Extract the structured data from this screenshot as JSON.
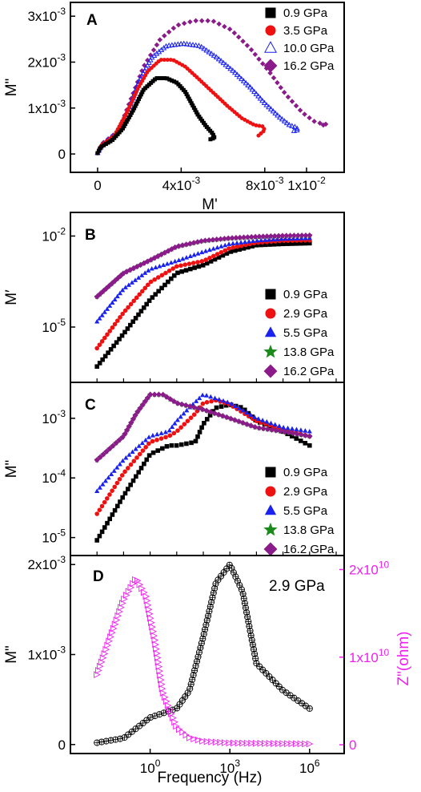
{
  "colors": {
    "black": "#000000",
    "red": "#ee1111",
    "blue": "#1a22ee",
    "green": "#1a8a1a",
    "purple": "#8b1a8b",
    "magenta": "#ee22ee"
  },
  "chart_data": [
    {
      "panel": "A",
      "type": "scatter",
      "xlabel": "M'",
      "ylabel": "M\"",
      "xlim": [
        -0.0013,
        0.0118
      ],
      "ylim": [
        -0.0004,
        0.0033
      ],
      "x_ticks": [
        {
          "v": 0,
          "label": "0"
        },
        {
          "v": 0.004,
          "label": "4x10-3"
        },
        {
          "v": 0.008,
          "label": "8x10-3"
        },
        {
          "v": 0.01,
          "label": "1x10-2"
        }
      ],
      "y_ticks": [
        {
          "v": 0,
          "label": "0"
        },
        {
          "v": 0.001,
          "label": "1x10-3"
        },
        {
          "v": 0.002,
          "label": "2x10-3"
        },
        {
          "v": 0.003,
          "label": "3x10-3"
        }
      ],
      "series": [
        {
          "name": "0.9 GPa",
          "color": "black",
          "marker": "square",
          "n": 75,
          "x": [
            0,
            0.00015,
            0.0007,
            0.0012,
            0.0017,
            0.0022,
            0.0028,
            0.0033,
            0.0038,
            0.0042,
            0.0045,
            0.0048,
            0.0052,
            0.0055,
            0.0056,
            0.0054
          ],
          "y": [
            2e-05,
            0.00015,
            0.0003,
            0.00055,
            0.00095,
            0.0014,
            0.00165,
            0.00165,
            0.00155,
            0.00135,
            0.0011,
            0.00085,
            0.0006,
            0.00045,
            0.00035,
            0.00032
          ]
        },
        {
          "name": "3.5 GPa",
          "color": "red",
          "marker": "circle",
          "n": 80,
          "x": [
            0,
            0.00015,
            0.0008,
            0.0014,
            0.0019,
            0.0024,
            0.003,
            0.0036,
            0.0042,
            0.0048,
            0.0055,
            0.0062,
            0.0069,
            0.0075,
            0.0079,
            0.008,
            0.0077
          ],
          "y": [
            2e-05,
            0.00018,
            0.0004,
            0.0009,
            0.0014,
            0.0018,
            0.00205,
            0.00205,
            0.0019,
            0.00165,
            0.00135,
            0.00105,
            0.00078,
            0.00063,
            0.0006,
            0.00052,
            0.0004
          ]
        },
        {
          "name": "10.0 GPa",
          "color": "blue",
          "marker": "triangle-open",
          "n": 100,
          "x": [
            0,
            0.0002,
            0.0009,
            0.0015,
            0.002,
            0.0026,
            0.0033,
            0.0041,
            0.0049,
            0.0057,
            0.0065,
            0.0073,
            0.008,
            0.0087,
            0.0092,
            0.0095,
            0.0096,
            0.0094
          ],
          "y": [
            2e-05,
            0.0002,
            0.00045,
            0.001,
            0.0016,
            0.0021,
            0.00235,
            0.0024,
            0.00235,
            0.0021,
            0.0018,
            0.00145,
            0.0011,
            0.0008,
            0.00062,
            0.00058,
            0.00052,
            0.0005
          ]
        },
        {
          "name": "16.2 GPa",
          "color": "purple",
          "marker": "diamond",
          "n": 60,
          "x": [
            0,
            0.0002,
            0.001,
            0.0016,
            0.0022,
            0.003,
            0.0038,
            0.0046,
            0.0055,
            0.0064,
            0.0073,
            0.0082,
            0.009,
            0.0098,
            0.0104,
            0.0108,
            0.011,
            0.0108
          ],
          "y": [
            2e-05,
            0.00022,
            0.0005,
            0.0012,
            0.0019,
            0.0025,
            0.0028,
            0.0029,
            0.0029,
            0.0027,
            0.0023,
            0.0018,
            0.0013,
            0.0009,
            0.0007,
            0.00065,
            0.00065,
            0.00063
          ]
        }
      ]
    },
    {
      "panel": "B",
      "type": "scatter",
      "xscale": "log",
      "yscale": "log",
      "xlabel": "",
      "ylabel": "M′",
      "xlim": [
        0.001,
        20000000
      ],
      "ylim": [
        1.5e-07,
        0.06
      ],
      "y_ticks": [
        {
          "v": 1e-05,
          "label": "10-5"
        },
        {
          "v": 0.01,
          "label": "10-2"
        }
      ],
      "series": [
        {
          "name": "0.9 GPa",
          "color": "black",
          "marker": "square",
          "n": 60,
          "x": [
            0.01,
            0.1,
            1,
            10,
            100,
            1000,
            10000,
            100000,
            1000000
          ],
          "y": [
            5e-07,
            6e-06,
            8e-05,
            0.0006,
            0.0011,
            0.003,
            0.005,
            0.0055,
            0.0058
          ]
        },
        {
          "name": "2.9 GPa",
          "color": "red",
          "marker": "circle",
          "n": 60,
          "x": [
            0.01,
            0.1,
            1,
            10,
            100,
            1000,
            10000,
            100000,
            1000000
          ],
          "y": [
            2e-06,
            3e-05,
            0.0003,
            0.001,
            0.0015,
            0.004,
            0.006,
            0.007,
            0.0072
          ]
        },
        {
          "name": "5.5 GPa",
          "color": "blue",
          "marker": "triangle",
          "n": 60,
          "x": [
            0.01,
            0.1,
            1,
            10,
            100,
            1000,
            10000,
            100000,
            1000000
          ],
          "y": [
            1.5e-05,
            0.00018,
            0.0008,
            0.0015,
            0.003,
            0.0055,
            0.007,
            0.008,
            0.0085
          ]
        },
        {
          "name": "13.8 GPa",
          "color": "green",
          "marker": "star",
          "n": 60,
          "x": [
            0.01,
            0.1,
            1,
            10,
            100,
            1000,
            10000,
            100000,
            1000000
          ],
          "y": [
            0.0001,
            0.0006,
            0.0016,
            0.0045,
            0.007,
            0.0085,
            0.0095,
            0.0102,
            0.0105
          ]
        },
        {
          "name": "16.2 GPa",
          "color": "purple",
          "marker": "diamond",
          "n": 60,
          "x": [
            0.01,
            0.1,
            1,
            10,
            100,
            1000,
            10000,
            100000,
            1000000
          ],
          "y": [
            0.0001,
            0.0006,
            0.0016,
            0.0045,
            0.007,
            0.0085,
            0.0095,
            0.0102,
            0.0105
          ]
        }
      ]
    },
    {
      "panel": "C",
      "type": "scatter",
      "xscale": "log",
      "yscale": "log",
      "xlabel": "",
      "ylabel": "M\"",
      "xlim": [
        0.001,
        20000000
      ],
      "ylim": [
        5e-06,
        0.004
      ],
      "y_ticks": [
        {
          "v": 1e-05,
          "label": "10-5"
        },
        {
          "v": 0.0001,
          "label": "10-4"
        },
        {
          "v": 0.001,
          "label": "10-3"
        }
      ],
      "series": [
        {
          "name": "0.9 GPa",
          "color": "black",
          "marker": "square",
          "n": 60,
          "x": [
            0.01,
            0.1,
            1,
            5,
            10,
            50,
            100,
            300,
            1000,
            3000,
            10000,
            100000,
            1000000
          ],
          "y": [
            9e-06,
            5e-05,
            0.00025,
            0.00035,
            0.00035,
            0.0004,
            0.0008,
            0.0015,
            0.0017,
            0.0015,
            0.0009,
            0.0006,
            0.00035
          ]
        },
        {
          "name": "2.9 GPa",
          "color": "red",
          "marker": "circle",
          "n": 60,
          "x": [
            0.01,
            0.1,
            1,
            5,
            10,
            50,
            100,
            300,
            1000,
            10000,
            100000,
            1000000
          ],
          "y": [
            2.5e-05,
            0.00012,
            0.0004,
            0.0005,
            0.0006,
            0.0012,
            0.0018,
            0.002,
            0.0017,
            0.0009,
            0.00065,
            0.0005
          ]
        },
        {
          "name": "5.5 GPa",
          "color": "blue",
          "marker": "triangle",
          "n": 60,
          "x": [
            0.01,
            0.1,
            1,
            5,
            10,
            30,
            100,
            1000,
            10000,
            100000,
            1000000
          ],
          "y": [
            6e-05,
            0.0002,
            0.0005,
            0.0006,
            0.0009,
            0.0015,
            0.0025,
            0.0018,
            0.001,
            0.0007,
            0.0006
          ]
        },
        {
          "name": "13.8 GPa",
          "color": "green",
          "marker": "star",
          "n": 60,
          "x": [
            0.01,
            0.1,
            0.3,
            1,
            3,
            10,
            100,
            1000,
            10000,
            100000,
            1000000
          ],
          "y": [
            0.0002,
            0.0005,
            0.0012,
            0.0025,
            0.0025,
            0.0018,
            0.0014,
            0.001,
            0.0007,
            0.0006,
            0.0005
          ]
        },
        {
          "name": "16.2 GPa",
          "color": "purple",
          "marker": "diamond",
          "n": 60,
          "x": [
            0.01,
            0.1,
            0.3,
            1,
            3,
            10,
            100,
            1000,
            10000,
            100000,
            1000000
          ],
          "y": [
            0.0002,
            0.0005,
            0.0012,
            0.0025,
            0.0025,
            0.0018,
            0.0014,
            0.001,
            0.0007,
            0.0006,
            0.0005
          ]
        }
      ]
    },
    {
      "panel": "D",
      "type": "scatter",
      "xscale": "log",
      "xlabel": "Frequency (Hz)",
      "ylabel": "M\"",
      "ylabel_right": "Z\"(ohm)",
      "annotation": "2.9 GPa",
      "xlim": [
        0.001,
        20000000
      ],
      "ylim": [
        -0.0001,
        0.0021
      ],
      "ylim_right": [
        -1000000000,
        21600000000
      ],
      "x_ticks": [
        {
          "v": 1,
          "label": "10",
          "exp": "0"
        },
        {
          "v": 1000,
          "label": "10",
          "exp": "3"
        },
        {
          "v": 1000000,
          "label": "10",
          "exp": "6"
        }
      ],
      "y_ticks": [
        {
          "v": 0,
          "label": "0"
        },
        {
          "v": 0.001,
          "label": "1x10-3"
        },
        {
          "v": 0.002,
          "label": "2x10-3"
        }
      ],
      "y_ticks_right": [
        {
          "v": 0,
          "label": "0"
        },
        {
          "v": 10000000000,
          "label": "1x1010"
        },
        {
          "v": 20000000000,
          "label": "2x1010"
        }
      ],
      "series": [
        {
          "name": "M\"",
          "color": "black",
          "marker": "circle-cross",
          "axis": "left",
          "n": 90,
          "x": [
            0.01,
            0.1,
            1,
            10,
            30,
            100,
            300,
            1000,
            3000,
            10000,
            100000,
            1000000
          ],
          "y": [
            2e-05,
            7e-05,
            0.0003,
            0.0004,
            0.0006,
            0.0012,
            0.0018,
            0.002,
            0.0017,
            0.0009,
            0.0006,
            0.0004
          ]
        },
        {
          "name": "Z\"",
          "color": "magenta",
          "marker": "triangle-right",
          "axis": "right",
          "n": 90,
          "x": [
            0.01,
            0.03,
            0.1,
            0.3,
            0.7,
            1.5,
            3,
            10,
            30,
            100,
            1000,
            1000000
          ],
          "y": [
            8000000000,
            12000000000,
            16500000000,
            19000000000,
            17000000000,
            12000000000,
            6000000000,
            2000000000,
            800000000,
            400000000,
            200000000,
            100000000
          ]
        }
      ]
    }
  ]
}
